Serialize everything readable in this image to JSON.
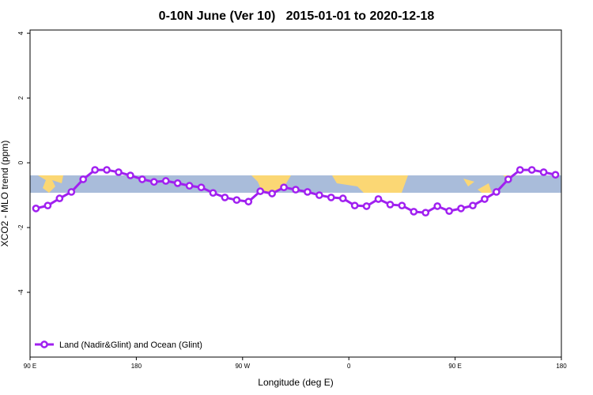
{
  "chart_data": {
    "type": "line",
    "title": "0-10N June (Ver 10)   2015-01-01 to 2020-12-18",
    "xlabel": "Longitude (deg E)",
    "ylabel": "XCO2 - MLO trend (ppm)",
    "x": [
      95,
      105,
      115,
      125,
      135,
      145,
      155,
      165,
      175,
      185,
      195,
      205,
      215,
      225,
      235,
      245,
      255,
      265,
      275,
      285,
      295,
      305,
      315,
      325,
      335,
      345,
      355,
      365,
      375,
      385,
      395,
      405,
      415,
      425,
      435,
      445,
      455,
      465,
      475,
      485,
      495,
      505,
      515,
      525,
      535
    ],
    "series": [
      {
        "name": "Land (Nadir&Glint) and Ocean (Glint)",
        "color": "#a020f0",
        "values": [
          -1.41,
          -1.32,
          -1.1,
          -0.9,
          -0.51,
          -0.22,
          -0.22,
          -0.29,
          -0.39,
          -0.51,
          -0.59,
          -0.56,
          -0.63,
          -0.71,
          -0.76,
          -0.93,
          -1.07,
          -1.15,
          -1.2,
          -0.88,
          -0.95,
          -0.76,
          -0.83,
          -0.9,
          -1.0,
          -1.07,
          -1.1,
          -1.32,
          -1.34,
          -1.12,
          -1.29,
          -1.32,
          -1.51,
          -1.54,
          -1.34,
          -1.49,
          -1.41,
          -1.32,
          -1.12,
          -0.9,
          -0.51,
          -0.22,
          -0.22,
          -0.29,
          -0.37
        ]
      }
    ],
    "xlim": [
      90,
      540
    ],
    "xticks": [
      {
        "value": 90,
        "label": "90 E"
      },
      {
        "value": 180,
        "label": "180"
      },
      {
        "value": 270,
        "label": "90 W"
      },
      {
        "value": 360,
        "label": "0"
      },
      {
        "value": 450,
        "label": "90 E"
      },
      {
        "value": 540,
        "label": "180"
      }
    ],
    "ylim": [
      -6,
      4.1
    ],
    "yticks": [
      -4,
      -2,
      0,
      2,
      4
    ],
    "legend": "bottomleft"
  }
}
